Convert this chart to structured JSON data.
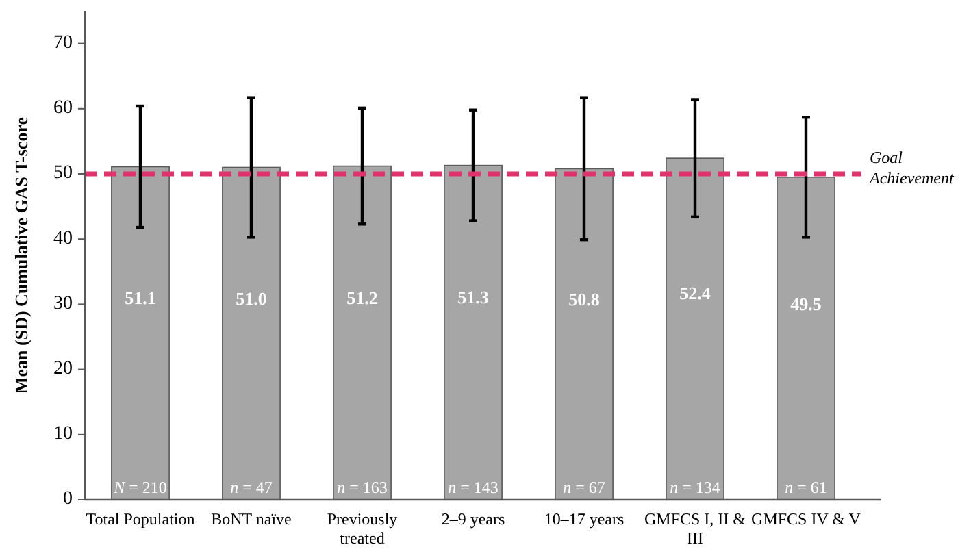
{
  "chart_data": {
    "type": "bar",
    "ylabel": "Mean (SD) Cumulative GAS T-score",
    "categories": [
      "Total Population",
      "BoNT naïve",
      "Previously treated",
      "2–9 years",
      "10–17 years",
      "GMFCS I, II & III",
      "GMFCS IV & V"
    ],
    "values": [
      51.1,
      51.0,
      51.2,
      51.3,
      50.8,
      52.4,
      49.5
    ],
    "errors": [
      9.3,
      10.7,
      8.9,
      8.5,
      10.9,
      9.0,
      9.2
    ],
    "color": "#a6a6a6",
    "value_labels": [
      "51.1",
      "51.0",
      "51.2",
      "51.3",
      "50.8",
      "52.4",
      "49.5"
    ],
    "ylim": [
      0,
      75
    ],
    "yticks": [
      0,
      10,
      20,
      30,
      40,
      50,
      60,
      70
    ],
    "grid": false,
    "ref_lines": [
      {
        "axis": "y",
        "value": 50,
        "label": "Goal Achievement",
        "color": "#e0336b",
        "line_style": "dashed"
      }
    ],
    "annotations": [
      {
        "text": "N = 210",
        "x": "Total Population",
        "y": 0
      },
      {
        "text": "n = 47",
        "x": "BoNT naïve",
        "y": 0
      },
      {
        "text": "n = 163",
        "x": "Previously treated",
        "y": 0
      },
      {
        "text": "n = 143",
        "x": "2–9 years",
        "y": 0
      },
      {
        "text": "n = 67",
        "x": "10–17 years",
        "y": 0
      },
      {
        "text": "n = 134",
        "x": "GMFCS I, II & III",
        "y": 0
      },
      {
        "text": "n = 61",
        "x": "GMFCS IV & V",
        "y": 0
      }
    ]
  }
}
